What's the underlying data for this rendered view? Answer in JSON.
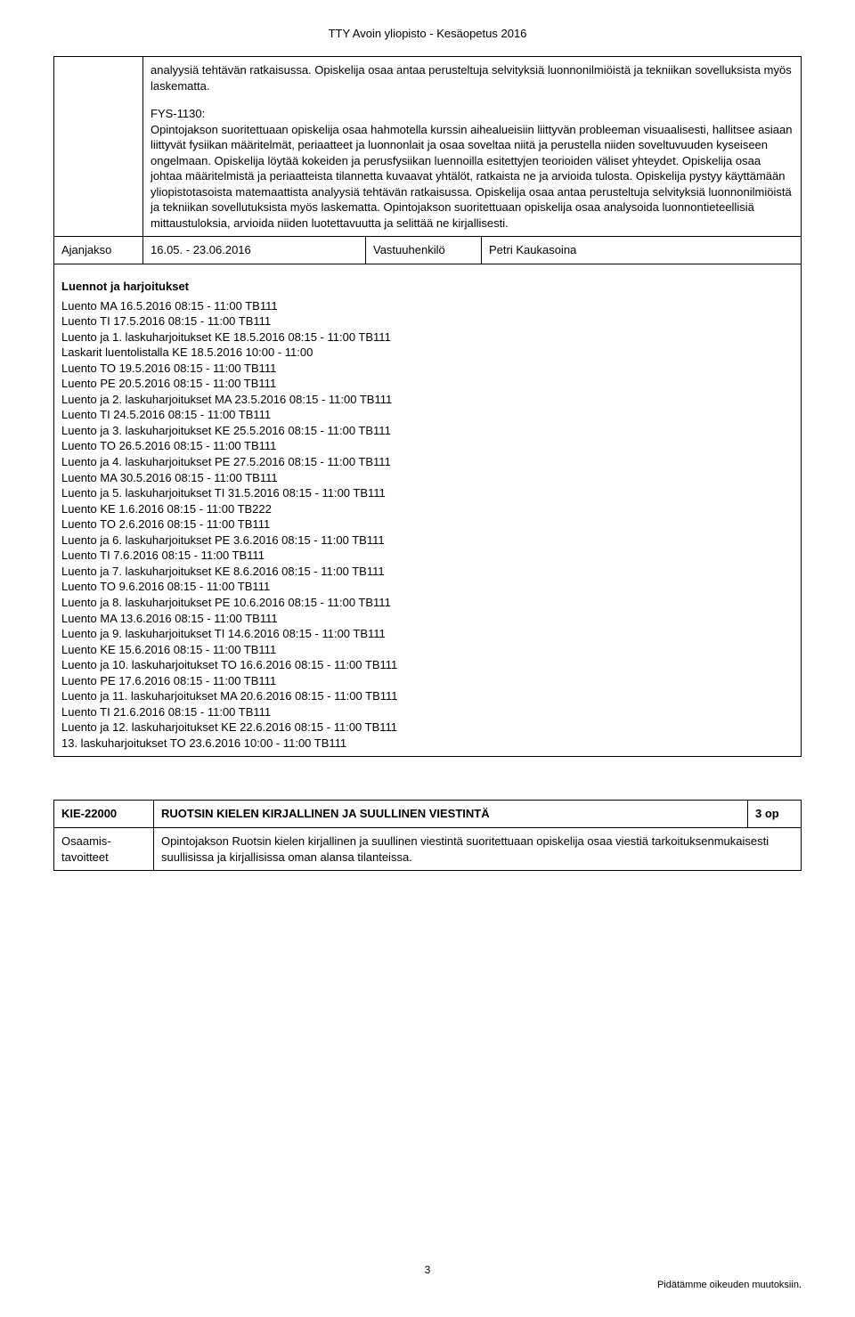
{
  "header": "TTY Avoin yliopisto  -  Kesäopetus 2016",
  "description": {
    "para1": "analyysiä tehtävän ratkaisussa. Opiskelija osaa antaa perusteltuja selvityksiä luonnonilmiöistä ja tekniikan sovelluksista myös laskematta.",
    "para2_label": "FYS-1130:",
    "para2_body": "Opintojakson suoritettuaan opiskelija osaa hahmotella kurssin aihealueisiin liittyvän probleeman visuaalisesti, hallitsee asiaan liittyvät fysiikan määritelmät, periaatteet ja luonnonlait ja osaa soveltaa niitä ja perustella niiden soveltuvuuden kyseiseen ongelmaan. Opiskelija löytää kokeiden ja perusfysiikan luennoilla esitettyjen teorioiden väliset yhteydet. Opiskelija osaa johtaa määritelmistä ja periaatteista tilannetta kuvaavat yhtälöt, ratkaista ne ja arvioida tulosta. Opiskelija pystyy käyttämään yliopistotasoista matemaattista analyysiä tehtävän ratkaisussa. Opiskelija osaa antaa perusteltuja selvityksiä luonnonilmiöistä ja tekniikan sovellutuksista myös laskematta. Opintojakson suoritettuaan opiskelija osaa analysoida luonnontieteellisiä mittaustuloksia, arvioida niiden luotettavuutta ja selittää ne kirjallisesti."
  },
  "period_row": {
    "label": "Ajanjakso",
    "dates": "16.05. - 23.06.2016",
    "resp_label": "Vastuuhenkilö",
    "resp_name": "Petri Kaukasoina"
  },
  "schedule_header": "Luennot ja harjoitukset",
  "schedule": [
    "Luento  MA   16.5.2016   08:15 - 11:00  TB111",
    "Luento  TI   17.5.2016   08:15 - 11:00  TB111",
    "Luento ja 1. laskuharjoitukset     KE   18.5.2016   08:15 - 11:00  TB111",
    "Laskarit luentolistalla  KE   18.5.2016   10:00 - 11:00",
    "Luento  TO   19.5.2016   08:15 - 11:00  TB111",
    "Luento  PE   20.5.2016   08:15 - 11:00  TB111",
    "Luento ja 2. laskuharjoitukset     MA   23.5.2016   08:15 - 11:00  TB111",
    "Luento  TI   24.5.2016   08:15 - 11:00  TB111",
    "Luento ja 3. laskuharjoitukset     KE   25.5.2016   08:15 - 11:00  TB111",
    "Luento  TO   26.5.2016   08:15 - 11:00  TB111",
    "Luento ja 4. laskuharjoitukset     PE   27.5.2016   08:15 - 11:00  TB111",
    "Luento  MA   30.5.2016   08:15 - 11:00  TB111",
    "Luento ja 5. laskuharjoitukset     TI   31.5.2016   08:15 - 11:00  TB111",
    "Luento  KE   1.6.2016   08:15 - 11:00  TB222",
    "Luento  TO   2.6.2016   08:15 - 11:00  TB111",
    "Luento ja 6. laskuharjoitukset     PE   3.6.2016   08:15 - 11:00  TB111",
    "Luento  TI   7.6.2016   08:15 - 11:00  TB111",
    "Luento ja 7. laskuharjoitukset     KE   8.6.2016   08:15 - 11:00  TB111",
    "Luento  TO   9.6.2016   08:15 - 11:00  TB111",
    "Luento ja 8. laskuharjoitukset     PE   10.6.2016   08:15 - 11:00  TB111",
    "Luento  MA   13.6.2016   08:15 - 11:00  TB111",
    "Luento ja 9. laskuharjoitukset     TI   14.6.2016   08:15 - 11:00  TB111",
    "Luento  KE   15.6.2016   08:15 - 11:00  TB111",
    "Luento ja 10. laskuharjoitukset     TO   16.6.2016   08:15 - 11:00  TB111",
    "Luento  PE   17.6.2016   08:15 - 11:00  TB111",
    "Luento ja 11. laskuharjoitukset     MA   20.6.2016   08:15 - 11:00  TB111",
    "Luento  TI   21.6.2016   08:15 - 11:00  TB111",
    "Luento ja 12. laskuharjoitukset     KE   22.6.2016   08:15 - 11:00  TB111",
    "13. laskuharjoitukset  TO   23.6.2016   10:00 - 11:00  TB111"
  ],
  "course2": {
    "code": "KIE-22000",
    "title": "RUOTSIN KIELEN KIRJALLINEN JA SUULLINEN VIESTINTÄ",
    "credits": "3 op",
    "goals_label": "Osaamis-tavoitteet",
    "goals_text": "Opintojakson Ruotsin kielen kirjallinen ja suullinen viestintä suoritettuaan opiskelija osaa viestiä tarkoituksenmukaisesti suullisissa ja kirjallisissa oman alansa tilanteissa."
  },
  "page_number": "3",
  "footer_note": "Pidätämme oikeuden muutoksiin."
}
